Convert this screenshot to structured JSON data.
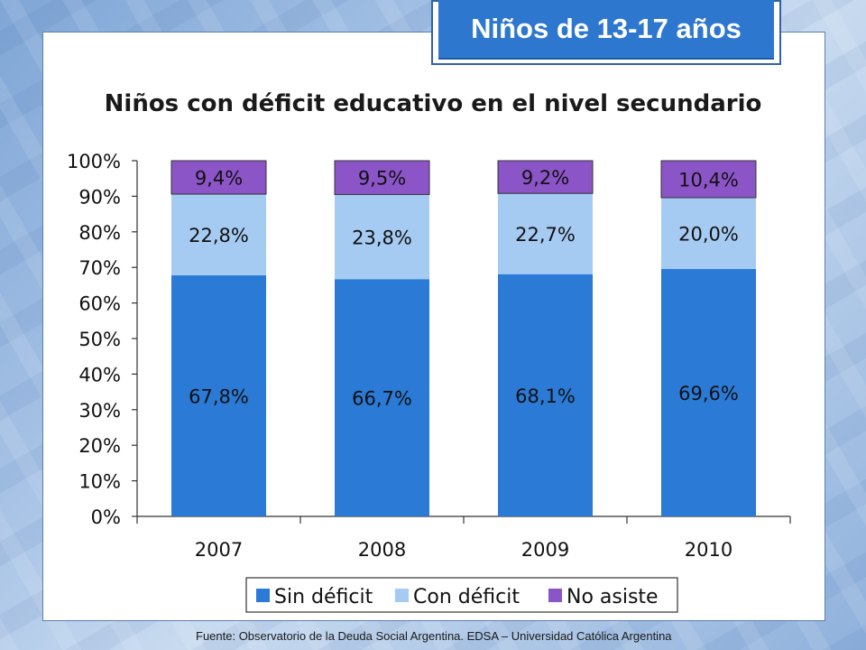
{
  "header": {
    "badge": "Niños de 13-17 años"
  },
  "source": "Fuente: Observatorio de la Deuda Social Argentina. EDSA – Universidad Católica Argentina",
  "chart_data": {
    "type": "bar",
    "stacked": true,
    "title": "Niños con déficit educativo en el nivel secundario",
    "categories": [
      "2007",
      "2008",
      "2009",
      "2010"
    ],
    "series": [
      {
        "name": "Sin déficit",
        "values": [
          67.8,
          66.7,
          68.1,
          69.6
        ],
        "labels": [
          "67,8%",
          "66,7%",
          "68,1%",
          "69,6%"
        ],
        "color": "#2a7ad6"
      },
      {
        "name": "Con déficit",
        "values": [
          22.8,
          23.8,
          22.7,
          20.0
        ],
        "labels": [
          "22,8%",
          "23,8%",
          "22,7%",
          "20,0%"
        ],
        "color": "#a6cbf3"
      },
      {
        "name": "No asiste",
        "values": [
          9.4,
          9.5,
          9.2,
          10.4
        ],
        "labels": [
          "9,4%",
          "9,5%",
          "9,2%",
          "10,4%"
        ],
        "color": "#8b55c8"
      }
    ],
    "ylim": [
      0,
      100
    ],
    "yticks": [
      "0%",
      "10%",
      "20%",
      "30%",
      "40%",
      "50%",
      "60%",
      "70%",
      "80%",
      "90%",
      "100%"
    ],
    "legend": "bottom",
    "grid": false
  }
}
